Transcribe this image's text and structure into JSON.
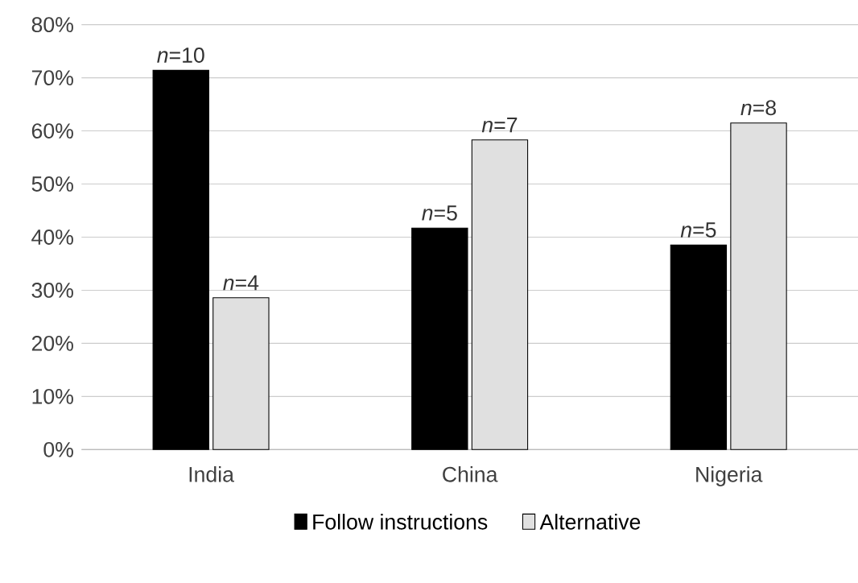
{
  "chart_data": {
    "type": "bar",
    "categories": [
      "India",
      "China",
      "Nigeria"
    ],
    "series": [
      {
        "name": "Follow instructions",
        "color": "#000000",
        "values": [
          71.4,
          41.7,
          38.5
        ]
      },
      {
        "name": "Alternative",
        "color": "#e0e0e0",
        "values": [
          28.6,
          58.3,
          61.5
        ]
      }
    ],
    "annotations": [
      {
        "text": "*n*=10",
        "x": "India",
        "y": 71.4
      },
      {
        "text": "*n*=4",
        "x": "India",
        "y": 28.6
      },
      {
        "text": "*n*=5",
        "x": "China",
        "y": 41.7
      },
      {
        "text": "*n*=7",
        "x": "China",
        "y": 58.3
      },
      {
        "text": "*n*=5",
        "x": "Nigeria",
        "y": 38.5
      },
      {
        "text": "*n*=8",
        "x": "Nigeria",
        "y": 61.5
      }
    ],
    "ylim": [
      0,
      80
    ],
    "yticks": [
      {
        "value": 0,
        "label": "0%"
      },
      {
        "value": 10,
        "label": "10%"
      },
      {
        "value": 20,
        "label": "20%"
      },
      {
        "value": 30,
        "label": "30%"
      },
      {
        "value": 40,
        "label": "40%"
      },
      {
        "value": 50,
        "label": "50%"
      },
      {
        "value": 60,
        "label": "60%"
      },
      {
        "value": 70,
        "label": "70%"
      },
      {
        "value": 80,
        "label": "80%"
      }
    ],
    "grid": "y",
    "legend": "bottom"
  }
}
